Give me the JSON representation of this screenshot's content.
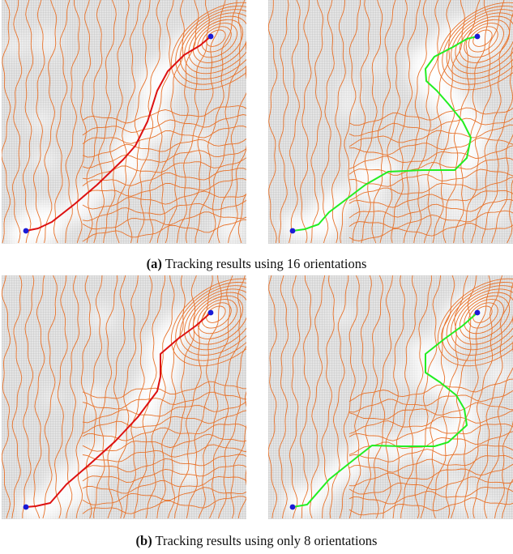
{
  "figure": {
    "panels": [
      {
        "id": "a-left",
        "path_color": "#dd1111",
        "seed": 3
      },
      {
        "id": "a-right",
        "path_color": "#22ee22",
        "seed": 7
      },
      {
        "id": "b-left",
        "path_color": "#dd1111",
        "seed": 11
      },
      {
        "id": "b-right",
        "path_color": "#22ee22",
        "seed": 17
      }
    ],
    "contour_color": "#e8722a",
    "endpoint_color": "#1a1ad6",
    "captions": [
      {
        "label": "(a)",
        "text": "Tracking results using 16 orientations"
      },
      {
        "label": "(b)",
        "text": "Tracking results using only 8 orientations"
      }
    ]
  }
}
